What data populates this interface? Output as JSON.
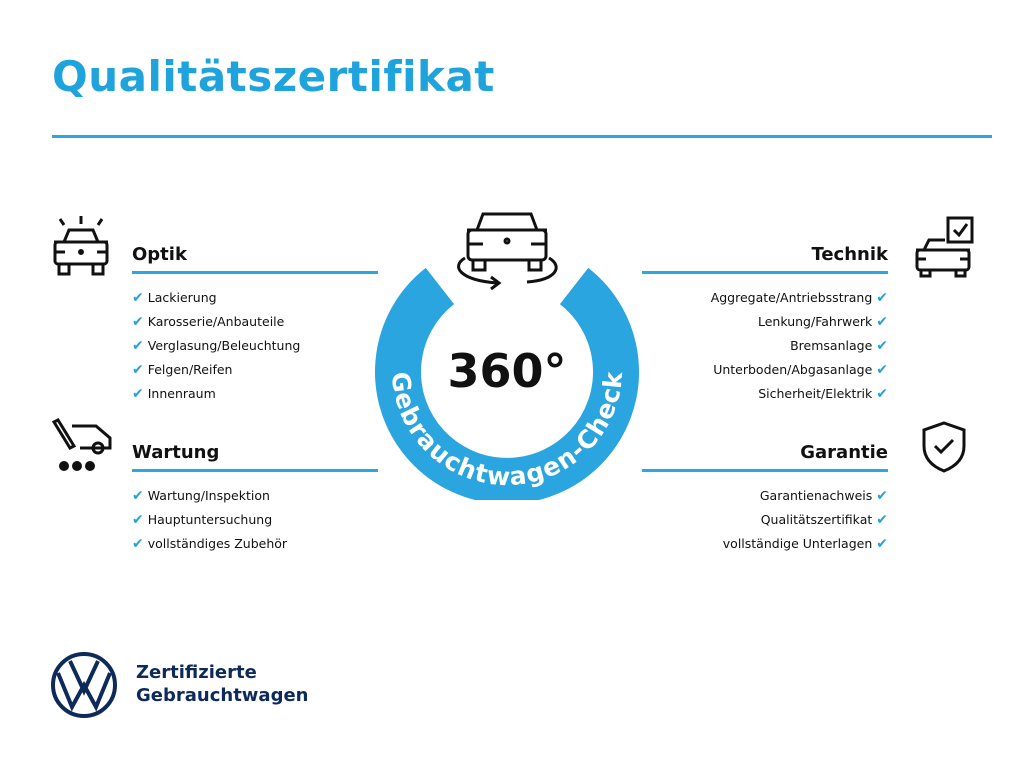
{
  "title": "Qualitätszertifikat",
  "center": {
    "degrees": "360°",
    "arc_text": "Gebrauchtwagen-Check"
  },
  "sections": {
    "optik": {
      "heading": "Optik",
      "items": [
        "Lackierung",
        "Karosserie/Anbauteile",
        "Verglasung/Beleuchtung",
        "Felgen/Reifen",
        "Innenraum"
      ]
    },
    "wartung": {
      "heading": "Wartung",
      "items": [
        "Wartung/Inspektion",
        "Hauptuntersuchung",
        "vollständiges Zubehör"
      ]
    },
    "technik": {
      "heading": "Technik",
      "items": [
        "Aggregate/Antriebsstrang",
        "Lenkung/Fahrwerk",
        "Bremsanlage",
        "Unterboden/Abgasanlage",
        "Sicherheit/Elektrik"
      ]
    },
    "garantie": {
      "heading": "Garantie",
      "items": [
        "Garantienachweis",
        "Qualitätszertifikat",
        "vollständige Unterlagen"
      ]
    }
  },
  "check_mark": "✔",
  "footer": {
    "line1": "Zertifizierte",
    "line2": "Gebrauchtwagen",
    "logo": "VW"
  },
  "colors": {
    "accent": "#1fa3dc",
    "brand_navy": "#0e2a5a"
  }
}
